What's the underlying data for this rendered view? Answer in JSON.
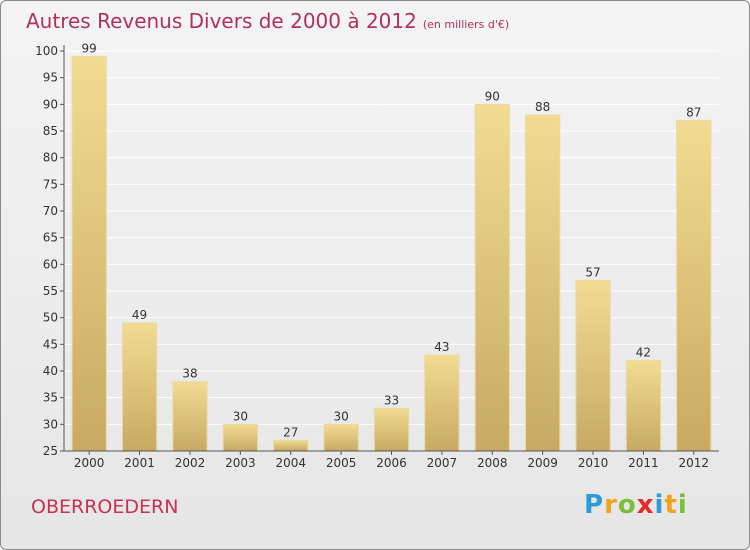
{
  "title": "Autres Revenus Divers de 2000 à 2012",
  "title_unit": "(en milliers d'€)",
  "location": "OBERROEDERN",
  "brand": {
    "letters": [
      "P",
      "r",
      "o",
      "x",
      "i",
      "t",
      "i"
    ],
    "colors": [
      "#2f9ad8",
      "#f2a31b",
      "#7cbd3a",
      "#e8282b",
      "#2f9ad8",
      "#f2a31b",
      "#7cbd3a"
    ]
  },
  "colors": {
    "bar_top": "#f2dc92",
    "bar_bottom": "#c8aa62",
    "title": "#b03060",
    "location": "#c83250",
    "grid": "#ffffff"
  },
  "chart_data": {
    "type": "bar",
    "title": "Autres Revenus Divers de 2000 à 2012",
    "xlabel": "",
    "ylabel": "",
    "categories": [
      "2000",
      "2001",
      "2002",
      "2003",
      "2004",
      "2005",
      "2006",
      "2007",
      "2008",
      "2009",
      "2010",
      "2011",
      "2012"
    ],
    "values": [
      99,
      49,
      38,
      30,
      27,
      30,
      33,
      43,
      90,
      88,
      57,
      42,
      87
    ],
    "ylim": [
      25,
      100
    ],
    "yticks": [
      25,
      30,
      35,
      40,
      45,
      50,
      55,
      60,
      65,
      70,
      75,
      80,
      85,
      90,
      95,
      100
    ],
    "grid": true,
    "legend": "none"
  }
}
